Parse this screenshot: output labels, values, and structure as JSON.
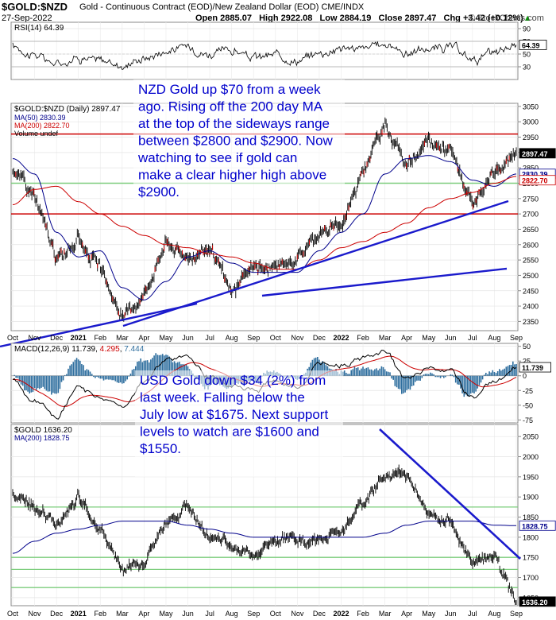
{
  "header": {
    "symbol": "$GOLD:$NZD",
    "description": "Gold - Continuous Contract (EOD)/New Zealand Dollar (EOD)  CME/INDX",
    "date": "27-Sep-2022",
    "open": "Open 2885.07",
    "high": "High 2922.08",
    "low": "Low 2884.19",
    "close": "Close 2897.47",
    "chg": "Chg +3.42 (+0.12%)",
    "chg_arrow": "▲",
    "credit": "© StockCharts.com"
  },
  "chart_data": [
    {
      "type": "line",
      "panel": "rsi",
      "legend": "RSI(14) 64.39",
      "value_tag": "64.39",
      "ylim": [
        10,
        100
      ],
      "ticks": [
        90,
        70,
        50,
        30
      ],
      "levels": [
        70,
        30
      ],
      "last": 64.39,
      "color": "#000000"
    },
    {
      "type": "line",
      "panel": "gold_nzd",
      "title": "$GOLD:$NZD (Daily) 2897.47",
      "x": [
        "Oct",
        "Nov",
        "Dec",
        "2021",
        "Feb",
        "Mar",
        "Apr",
        "May",
        "Jun",
        "Jul",
        "Aug",
        "Sep",
        "Oct",
        "Nov",
        "Dec",
        "2022",
        "Feb",
        "Mar",
        "Apr",
        "May",
        "Jun",
        "Jul",
        "Aug",
        "Sep"
      ],
      "ylim": [
        2320,
        3060
      ],
      "ticks": [
        3050,
        3000,
        2950,
        2900,
        2850,
        2800,
        2750,
        2700,
        2650,
        2600,
        2550,
        2500,
        2450,
        2400,
        2350
      ],
      "last_tag": "2897.47",
      "series": [
        {
          "name": "$GOLD:$NZD",
          "color": "#000000",
          "values": [
            2850,
            2760,
            2550,
            2620,
            2520,
            2360,
            2440,
            2610,
            2560,
            2590,
            2440,
            2530,
            2520,
            2560,
            2640,
            2660,
            2850,
            2990,
            2860,
            2930,
            2910,
            2720,
            2830,
            2897
          ]
        },
        {
          "name": "MA(50) 2830.39",
          "color": "#00008b",
          "values": [
            2880,
            2830,
            2640,
            2560,
            2580,
            2460,
            2420,
            2480,
            2560,
            2580,
            2540,
            2510,
            2510,
            2510,
            2580,
            2640,
            2700,
            2830,
            2880,
            2890,
            2870,
            2810,
            2790,
            2830
          ]
        },
        {
          "name": "MA(200) 2822.70",
          "color": "#cc0000",
          "values": [
            2730,
            2780,
            2790,
            2740,
            2700,
            2660,
            2630,
            2600,
            2590,
            2570,
            2560,
            2540,
            2520,
            2520,
            2550,
            2590,
            2610,
            2640,
            2670,
            2720,
            2750,
            2770,
            2800,
            2822
          ]
        }
      ],
      "tags": [
        {
          "text": "2830.39",
          "value": 2830.39,
          "color": "#00008b"
        },
        {
          "text": "2822.70",
          "value": 2822.7,
          "color": "#cc0000"
        }
      ],
      "volume_legend": "Volume undef",
      "hlines": [
        {
          "value": 2960,
          "color": "#cc0000"
        },
        {
          "value": 2800,
          "color": "#7ccd7c"
        },
        {
          "value": 2700,
          "color": "#cc0000"
        }
      ],
      "annotation": [
        "NZD Gold up $70 from a week",
        "ago. Rising off the 200 day MA",
        "at the top of the sideways range",
        "between $2800 and $2900. Now",
        "watching to see if gold can",
        "make a clear higher high above",
        "$2900."
      ]
    },
    {
      "type": "line",
      "panel": "macd",
      "legend_prefix": "MACD(12,26,9) 11.739, ",
      "legend_signal": "4.295",
      "legend_sep": ", ",
      "legend_hist": "7.444",
      "ylim": [
        -80,
        55
      ],
      "ticks": [
        50,
        25,
        0,
        -25,
        -50,
        -75
      ],
      "tag": "11.739",
      "series": [
        {
          "name": "MACD",
          "color": "#000000"
        },
        {
          "name": "Signal",
          "color": "#cc0000"
        },
        {
          "name": "Histogram",
          "color": "#2e6e9e"
        }
      ]
    },
    {
      "type": "line",
      "panel": "gold_usd",
      "legend": "$GOLD 1636.20",
      "ma_legend": "MA(200) 1828.75",
      "x": [
        "Oct",
        "Nov",
        "Dec",
        "2021",
        "Feb",
        "Mar",
        "Apr",
        "May",
        "Jun",
        "Jul",
        "Aug",
        "Sep",
        "Oct",
        "Nov",
        "Dec",
        "2022",
        "Feb",
        "Mar",
        "Apr",
        "May",
        "Jun",
        "Jul",
        "Aug",
        "Sep"
      ],
      "ylim": [
        1630,
        2080
      ],
      "ticks": [
        2050,
        2000,
        1950,
        1900,
        1850,
        1800,
        1750,
        1700,
        1650
      ],
      "last_tag": "1636.20",
      "ma_tag": "1828.75",
      "series": [
        {
          "name": "$GOLD",
          "color": "#000000",
          "values": [
            1900,
            1880,
            1830,
            1900,
            1820,
            1720,
            1740,
            1830,
            1880,
            1800,
            1780,
            1760,
            1790,
            1800,
            1790,
            1820,
            1880,
            1960,
            1950,
            1860,
            1840,
            1730,
            1760,
            1636
          ]
        },
        {
          "name": "MA(200)",
          "color": "#00008b",
          "values": [
            1760,
            1790,
            1810,
            1820,
            1830,
            1840,
            1840,
            1840,
            1830,
            1820,
            1810,
            1800,
            1800,
            1800,
            1800,
            1800,
            1800,
            1810,
            1830,
            1840,
            1840,
            1840,
            1830,
            1828.75
          ]
        }
      ],
      "hlines": [
        {
          "value": 1875,
          "color": "#7ccd7c"
        },
        {
          "value": 1750,
          "color": "#7ccd7c"
        },
        {
          "value": 1720,
          "color": "#7ccd7c"
        },
        {
          "value": 1675,
          "color": "#7ccd7c"
        }
      ],
      "annotation": [
        "USD Gold down $34 (2%) from",
        "last week. Falling below the",
        "July low at $1675. Next support",
        "levels to watch are $1600 and",
        "$1550."
      ]
    }
  ]
}
